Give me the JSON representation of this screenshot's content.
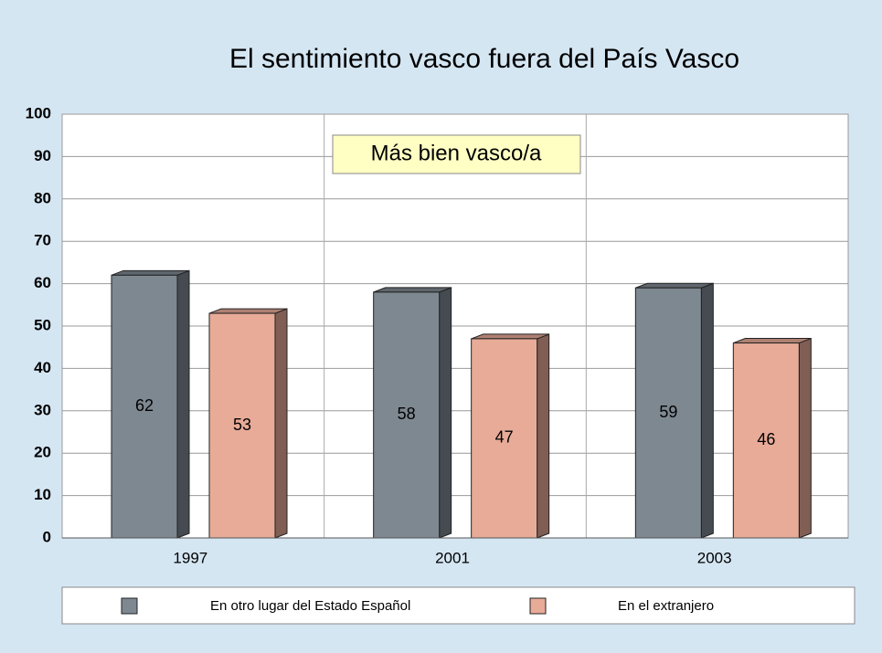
{
  "chart_data": {
    "type": "bar",
    "title": "El sentimiento vasco fuera del País Vasco",
    "annotation": "Más bien vasco/a",
    "categories": [
      "1997",
      "2001",
      "2003"
    ],
    "series": [
      {
        "name": "En otro lugar del Estado Español",
        "color": "#7e8891",
        "values": [
          62,
          58,
          59
        ]
      },
      {
        "name": "En el extranjero",
        "color": "#e8ab98",
        "values": [
          53,
          47,
          46
        ]
      }
    ],
    "ylim": [
      0,
      100
    ],
    "yticks": [
      0,
      10,
      20,
      30,
      40,
      50,
      60,
      70,
      80,
      90,
      100
    ],
    "grid": true
  }
}
